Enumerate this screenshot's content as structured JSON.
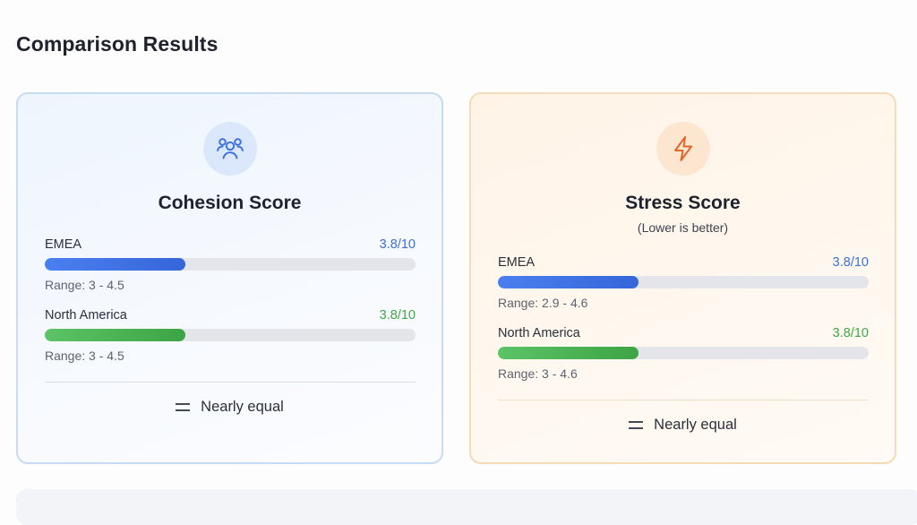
{
  "page": {
    "title": "Comparison Results"
  },
  "colors": {
    "blue": "#3b6fe0",
    "green": "#3ea845",
    "cohesion_accent": "#3b6fe0",
    "stress_accent": "#e0662a"
  },
  "cards": {
    "cohesion": {
      "icon": "users-group-icon",
      "title": "Cohesion Score",
      "metrics": [
        {
          "label": "EMEA",
          "value": "3.8/10",
          "score": 3.8,
          "max": 10,
          "range": "Range: 3 - 4.5"
        },
        {
          "label": "North America",
          "value": "3.8/10",
          "score": 3.8,
          "max": 10,
          "range": "Range: 3 - 4.5"
        }
      ],
      "verdict": "Nearly equal"
    },
    "stress": {
      "icon": "lightning-icon",
      "title": "Stress Score",
      "subtitle": "(Lower is better)",
      "metrics": [
        {
          "label": "EMEA",
          "value": "3.8/10",
          "score": 3.8,
          "max": 10,
          "range": "Range: 2.9 - 4.6"
        },
        {
          "label": "North America",
          "value": "3.8/10",
          "score": 3.8,
          "max": 10,
          "range": "Range: 3 - 4.6"
        }
      ],
      "verdict": "Nearly equal"
    }
  }
}
